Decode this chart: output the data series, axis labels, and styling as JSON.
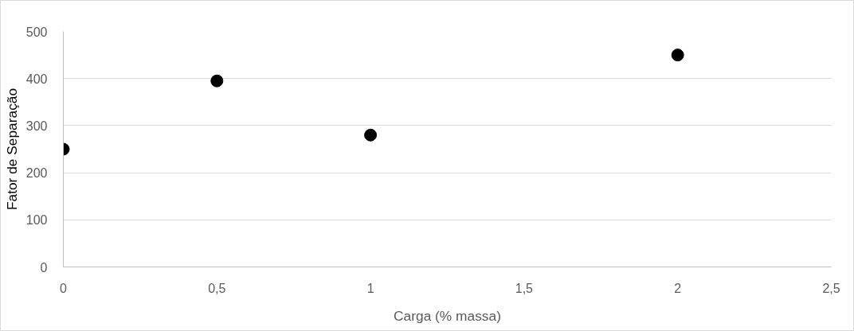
{
  "chart_data": {
    "type": "scatter",
    "xlabel": "Carga (% massa)",
    "ylabel": "Fator de Separação",
    "x": [
      0,
      0.5,
      1,
      2
    ],
    "series": [
      {
        "color": "#000000",
        "values": [
          250,
          395,
          280,
          450
        ]
      }
    ],
    "xlim": [
      0,
      2.5
    ],
    "xticks": [
      0,
      {
        "value": 0.5,
        "label": "0,5"
      },
      1,
      {
        "value": 1.5,
        "label": "1,5"
      },
      2,
      {
        "value": 2.5,
        "label": "2,5"
      }
    ],
    "ylim": [
      0,
      500
    ],
    "yticks": [
      0,
      100,
      200,
      300,
      400,
      500
    ],
    "grid": "y",
    "marker": "circle"
  }
}
